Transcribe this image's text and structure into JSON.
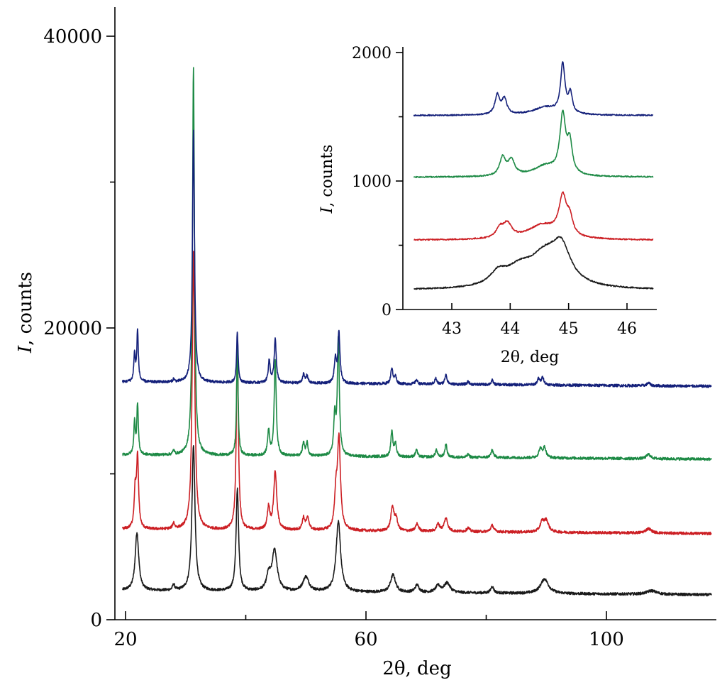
{
  "chart_data": [
    {
      "type": "line",
      "name": "main",
      "xlabel": "2θ, deg",
      "ylabel_italic": "I",
      "ylabel_rest": ", counts",
      "xlim": [
        19,
        118
      ],
      "ylim": [
        0,
        42000
      ],
      "xticks_major": [
        20,
        60,
        100
      ],
      "xticks_minor": [
        40,
        80
      ],
      "yticks_major": [
        0,
        20000,
        40000
      ],
      "yticks_minor": [
        10000,
        30000
      ],
      "series": [
        {
          "name": "black",
          "color": "#1a1a1a",
          "baseline": 2000,
          "peaks": [
            [
              21.9,
              4000,
              0.35
            ],
            [
              28.0,
              400,
              0.2
            ],
            [
              31.3,
              10000,
              0.3
            ],
            [
              38.6,
              7000,
              0.25
            ],
            [
              43.8,
              1000,
              0.4
            ],
            [
              44.8,
              2800,
              0.5
            ],
            [
              50.0,
              1000,
              0.6
            ],
            [
              55.4,
              4800,
              0.45
            ],
            [
              64.5,
              1200,
              0.5
            ],
            [
              68.5,
              500,
              0.4
            ],
            [
              72.0,
              450,
              0.5
            ],
            [
              73.5,
              650,
              0.6
            ],
            [
              81.0,
              450,
              0.3
            ],
            [
              89.7,
              1000,
              0.8
            ],
            [
              107.5,
              250,
              1.0
            ]
          ]
        },
        {
          "name": "red",
          "color": "#cc1f24",
          "baseline": 6200,
          "peaks": [
            [
              21.6,
              2500,
              0.2
            ],
            [
              22.0,
              4800,
              0.2
            ],
            [
              28.0,
              400,
              0.2
            ],
            [
              31.3,
              19000,
              0.25
            ],
            [
              38.6,
              13000,
              0.2
            ],
            [
              43.8,
              1500,
              0.25
            ],
            [
              44.9,
              4000,
              0.3
            ],
            [
              49.6,
              800,
              0.25
            ],
            [
              50.3,
              800,
              0.3
            ],
            [
              55.0,
              2200,
              0.25
            ],
            [
              55.5,
              6200,
              0.3
            ],
            [
              64.4,
              1600,
              0.3
            ],
            [
              65.0,
              800,
              0.3
            ],
            [
              68.5,
              500,
              0.3
            ],
            [
              72.0,
              500,
              0.3
            ],
            [
              73.3,
              900,
              0.35
            ],
            [
              77.0,
              250,
              0.3
            ],
            [
              81.0,
              450,
              0.3
            ],
            [
              89.3,
              650,
              0.4
            ],
            [
              90.0,
              750,
              0.45
            ],
            [
              107.0,
              300,
              0.6
            ]
          ]
        },
        {
          "name": "green",
          "color": "#1d8a45",
          "baseline": 11300,
          "peaks": [
            [
              21.5,
              2200,
              0.15
            ],
            [
              22.0,
              3500,
              0.15
            ],
            [
              28.0,
              300,
              0.15
            ],
            [
              31.3,
              26500,
              0.2
            ],
            [
              38.6,
              7500,
              0.15
            ],
            [
              43.8,
              1700,
              0.2
            ],
            [
              44.9,
              6600,
              0.2
            ],
            [
              49.6,
              900,
              0.2
            ],
            [
              50.2,
              900,
              0.2
            ],
            [
              54.8,
              2600,
              0.2
            ],
            [
              55.4,
              8000,
              0.2
            ],
            [
              64.3,
              1700,
              0.2
            ],
            [
              64.9,
              900,
              0.2
            ],
            [
              68.4,
              500,
              0.2
            ],
            [
              71.7,
              500,
              0.2
            ],
            [
              73.3,
              900,
              0.2
            ],
            [
              77.0,
              200,
              0.2
            ],
            [
              81.0,
              500,
              0.25
            ],
            [
              89.0,
              600,
              0.3
            ],
            [
              89.7,
              700,
              0.3
            ],
            [
              107.0,
              300,
              0.4
            ]
          ]
        },
        {
          "name": "blue",
          "color": "#14207a",
          "baseline": 16300,
          "peaks": [
            [
              21.5,
              1900,
              0.15
            ],
            [
              22.0,
              3500,
              0.15
            ],
            [
              28.0,
              200,
              0.15
            ],
            [
              31.3,
              17200,
              0.2
            ],
            [
              38.6,
              3500,
              0.15
            ],
            [
              43.9,
              1500,
              0.2
            ],
            [
              44.9,
              3000,
              0.2
            ],
            [
              49.6,
              600,
              0.2
            ],
            [
              50.2,
              500,
              0.2
            ],
            [
              54.9,
              1600,
              0.2
            ],
            [
              55.5,
              3500,
              0.2
            ],
            [
              64.3,
              1100,
              0.2
            ],
            [
              64.9,
              500,
              0.2
            ],
            [
              68.4,
              300,
              0.2
            ],
            [
              71.6,
              400,
              0.2
            ],
            [
              73.3,
              700,
              0.2
            ],
            [
              77.0,
              200,
              0.2
            ],
            [
              81.0,
              300,
              0.2
            ],
            [
              88.7,
              400,
              0.25
            ],
            [
              89.4,
              500,
              0.25
            ],
            [
              107.0,
              200,
              0.3
            ]
          ]
        }
      ]
    },
    {
      "type": "line",
      "name": "inset",
      "xlabel": "2θ, deg",
      "ylabel_italic": "I",
      "ylabel_rest": ", counts",
      "xlim": [
        42.3,
        46.5
      ],
      "ylim": [
        0,
        2000
      ],
      "xticks_major": [
        43,
        44,
        45,
        46
      ],
      "yticks_major": [
        0,
        1000,
        2000
      ],
      "yticks_minor": [
        500,
        1500
      ],
      "series": [
        {
          "name": "black",
          "color": "#1a1a1a",
          "baseline": 150,
          "peaks": [
            [
              43.8,
              100,
              0.18
            ],
            [
              44.15,
              110,
              0.25
            ],
            [
              44.6,
              250,
              0.35
            ],
            [
              44.88,
              240,
              0.18
            ]
          ]
        },
        {
          "name": "red",
          "color": "#cc1f24",
          "baseline": 540,
          "peaks": [
            [
              43.82,
              70,
              0.07
            ],
            [
              43.95,
              110,
              0.09
            ],
            [
              44.55,
              110,
              0.3
            ],
            [
              44.9,
              300,
              0.08
            ],
            [
              45.02,
              120,
              0.06
            ]
          ]
        },
        {
          "name": "green",
          "color": "#1d8a45",
          "baseline": 1030,
          "peaks": [
            [
              43.87,
              140,
              0.06
            ],
            [
              44.02,
              120,
              0.07
            ],
            [
              44.6,
              80,
              0.25
            ],
            [
              44.9,
              450,
              0.06
            ],
            [
              45.02,
              230,
              0.05
            ]
          ]
        },
        {
          "name": "blue",
          "color": "#14207a",
          "baseline": 1510,
          "peaks": [
            [
              43.78,
              150,
              0.05
            ],
            [
              43.9,
              120,
              0.05
            ],
            [
              44.6,
              60,
              0.25
            ],
            [
              44.9,
              380,
              0.045
            ],
            [
              45.03,
              150,
              0.04
            ]
          ]
        }
      ]
    }
  ]
}
